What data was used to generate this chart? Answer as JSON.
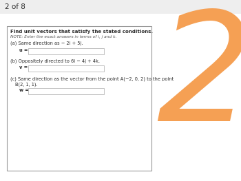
{
  "page_label": "2 of 8",
  "title_line1": "Find unit vectors that satisfy the stated conditions.",
  "note_line": "NOTE: Enter the exact answers in terms of i, j and k.",
  "part_a_label": "(a) Same direction as − 2i + 5j.",
  "var_a": "u =",
  "part_b_label": "(b) Oppositely directed to 6i − 4j + 4k.",
  "var_b": "v =",
  "part_c_label": "(c) Same direction as the vector from the point A(−2, 0, 2) to the point",
  "part_c_label2": "B(2, 1, 1).",
  "var_c": "w =",
  "page_bg": "#f5f5f5",
  "content_bg": "#ffffff",
  "box_color": "#ffffff",
  "orange_color": "#f5a054",
  "text_color": "#2a2a2a",
  "note_color": "#555555",
  "input_box_color": "#ffffff",
  "input_box_border": "#aaaaaa",
  "top_strip_color": "#eeeeee"
}
